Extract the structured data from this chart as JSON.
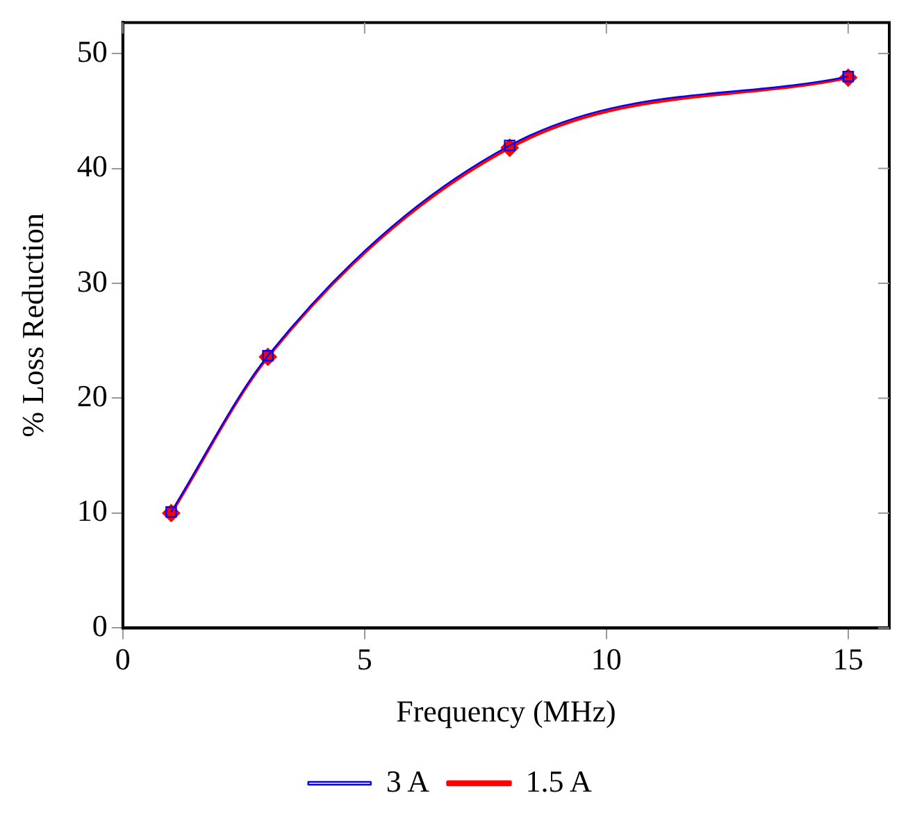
{
  "chart_data": {
    "type": "line",
    "xlabel": "Frequency (MHz)",
    "ylabel": "% Loss Reduction",
    "x": [
      1,
      3,
      8,
      15
    ],
    "series": [
      {
        "name": "1.5 A",
        "color": "#ff0000",
        "marker": "diamond",
        "values": [
          10,
          23.6,
          41.8,
          47.9
        ]
      },
      {
        "name": "3 A",
        "color": "#0000ff",
        "marker": "square",
        "values": [
          10.1,
          23.7,
          42,
          48
        ]
      }
    ],
    "xlim": [
      0,
      15.85
    ],
    "xticks": [
      0,
      5,
      10,
      15
    ],
    "ylim": [
      0,
      52.7
    ],
    "yticks": [
      0,
      10,
      20,
      30,
      40,
      50
    ],
    "grid": false,
    "legend": "bottom"
  }
}
